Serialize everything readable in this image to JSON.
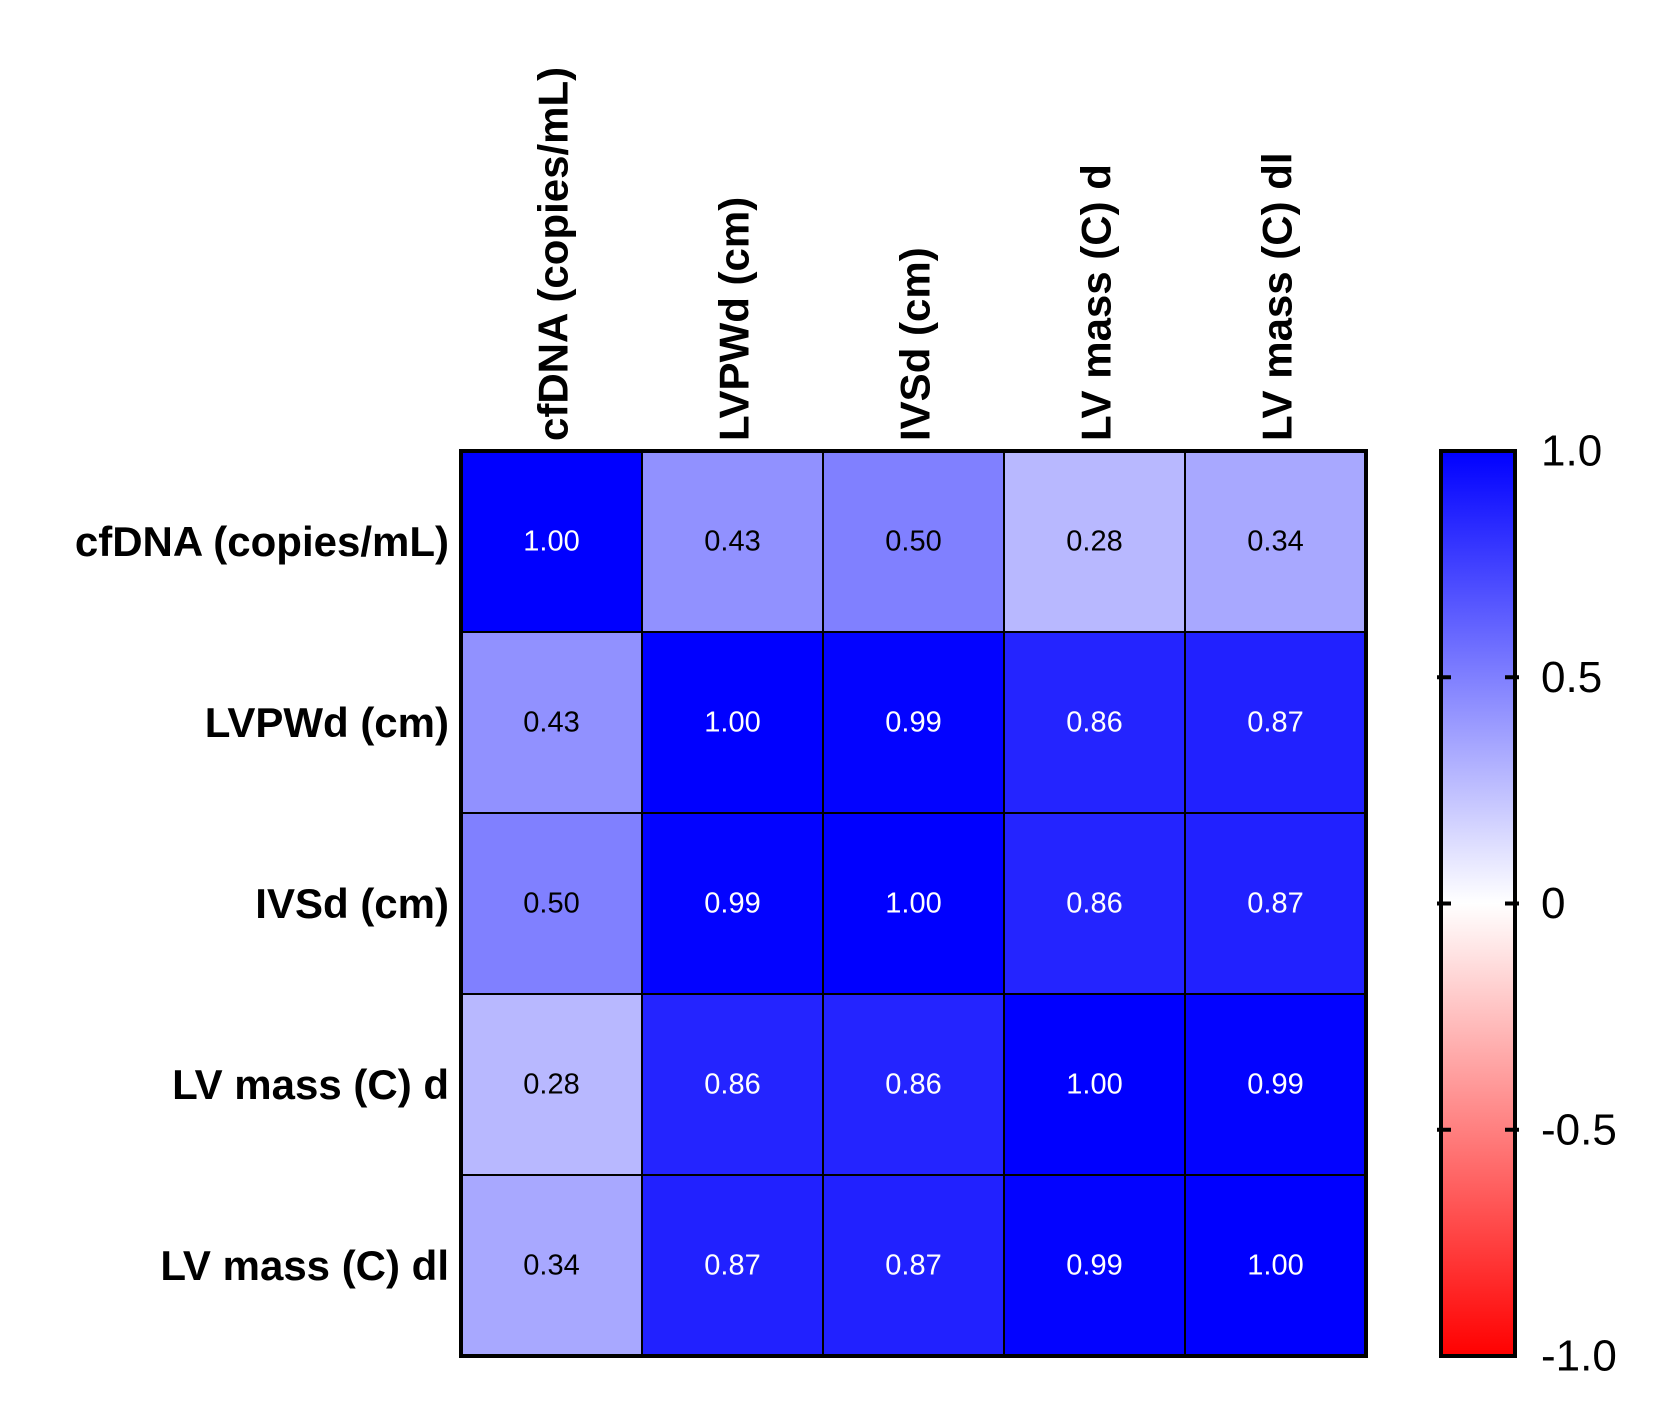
{
  "chart_data": {
    "type": "heatmap",
    "title": "",
    "rows": [
      "cfDNA (copies/mL)",
      "LVPWd (cm)",
      "IVSd (cm)",
      "LV mass (C) d",
      "LV mass (C) dl"
    ],
    "columns": [
      "cfDNA (copies/mL)",
      "LVPWd (cm)",
      "IVSd (cm)",
      "LV mass (C) d",
      "LV mass (C) dl"
    ],
    "values": [
      [
        1.0,
        0.43,
        0.5,
        0.28,
        0.34
      ],
      [
        0.43,
        1.0,
        0.99,
        0.86,
        0.87
      ],
      [
        0.5,
        0.99,
        1.0,
        0.86,
        0.87
      ],
      [
        0.28,
        0.86,
        0.86,
        1.0,
        0.99
      ],
      [
        0.34,
        0.87,
        0.87,
        0.99,
        1.0
      ]
    ],
    "value_labels": [
      [
        "1.00",
        "0.43",
        "0.50",
        "0.28",
        "0.34"
      ],
      [
        "0.43",
        "1.00",
        "0.99",
        "0.86",
        "0.87"
      ],
      [
        "0.50",
        "0.99",
        "1.00",
        "0.86",
        "0.87"
      ],
      [
        "0.28",
        "0.86",
        "0.86",
        "1.00",
        "0.99"
      ],
      [
        "0.34",
        "0.87",
        "0.87",
        "0.99",
        "1.00"
      ]
    ],
    "colorbar": {
      "range": [
        -1.0,
        1.0
      ],
      "ticks": [
        1.0,
        0.5,
        0,
        -0.5,
        -1.0
      ],
      "tick_labels": [
        "1.0",
        "0.5",
        "0",
        "-0.5",
        "-1.0"
      ],
      "color_max": "#0000ff",
      "color_mid": "#ffffff",
      "color_min": "#ff0000"
    }
  }
}
